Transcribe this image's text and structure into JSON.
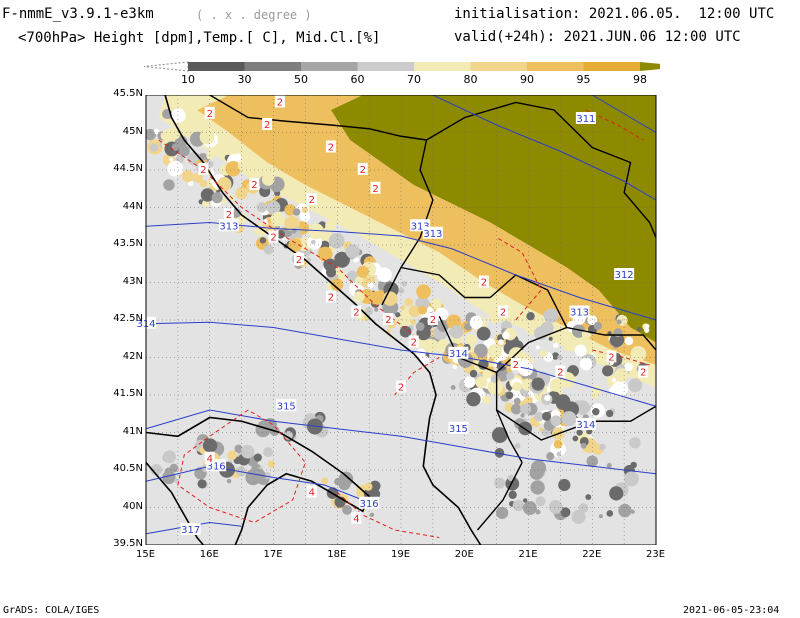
{
  "header": {
    "title": "F-nmmE_v3.9.1-e3km",
    "projection": "( . x . degree )",
    "subtitle": "<700hPa> Height [dpm],Temp.[ C], Mid.Cl.[%]",
    "init_label": "initialisation:",
    "init_date": "2021.06.05.",
    "init_time": "12:00 UTC",
    "valid_label": "valid(+24h):",
    "valid_date": "2021.JUN.06",
    "valid_time": "12:00 UTC"
  },
  "legend": {
    "ticks": [
      "10",
      "30",
      "50",
      "60",
      "70",
      "80",
      "90",
      "95",
      "98"
    ],
    "colors": [
      "#ffffff",
      "#5a5a5a",
      "#7e7e7e",
      "#a6a6a6",
      "#cccccc",
      "#f3ebb6",
      "#f2d58c",
      "#eebf5e",
      "#e6ad34",
      "#8d8a00"
    ]
  },
  "map": {
    "lat_labels": [
      "39.5N",
      "40N",
      "40.5N",
      "41N",
      "41.5N",
      "42N",
      "42.5N",
      "43N",
      "43.5N",
      "44N",
      "44.5N",
      "45N",
      "45.5N"
    ],
    "lon_labels": [
      "15E",
      "16E",
      "17E",
      "18E",
      "19E",
      "20E",
      "21E",
      "22E",
      "23E"
    ],
    "height_contour_labels": [
      "311",
      "312",
      "313",
      "313",
      "313",
      "313",
      "314",
      "314",
      "314",
      "315",
      "315",
      "316",
      "316",
      "317"
    ],
    "temp_contour_labels": [
      "2",
      "2",
      "2",
      "2",
      "2",
      "2",
      "2",
      "2",
      "2",
      "2",
      "2",
      "2",
      "2",
      "2",
      "2",
      "2",
      "2",
      "2",
      "2",
      "2",
      "2",
      "2",
      "2",
      "2",
      "4",
      "4",
      "4"
    ],
    "colors": {
      "sea": "#e3e3e3",
      "cloud_dark": "#6b6b6b",
      "cloud_mid": "#a2a2a2",
      "cloud_light": "#c9c9c9",
      "cloud_yellow1": "#f3ebb6",
      "cloud_yellow2": "#f2d58c",
      "cloud_orange": "#eebf5e",
      "cloud_olive": "#8d8a00",
      "height_contour": "#2a3fc8",
      "temp_contour": "#e02020",
      "coastline": "#000000"
    }
  },
  "footer": {
    "left": "GrADS: COLA/IGES",
    "right": "2021-06-05-23:04"
  }
}
